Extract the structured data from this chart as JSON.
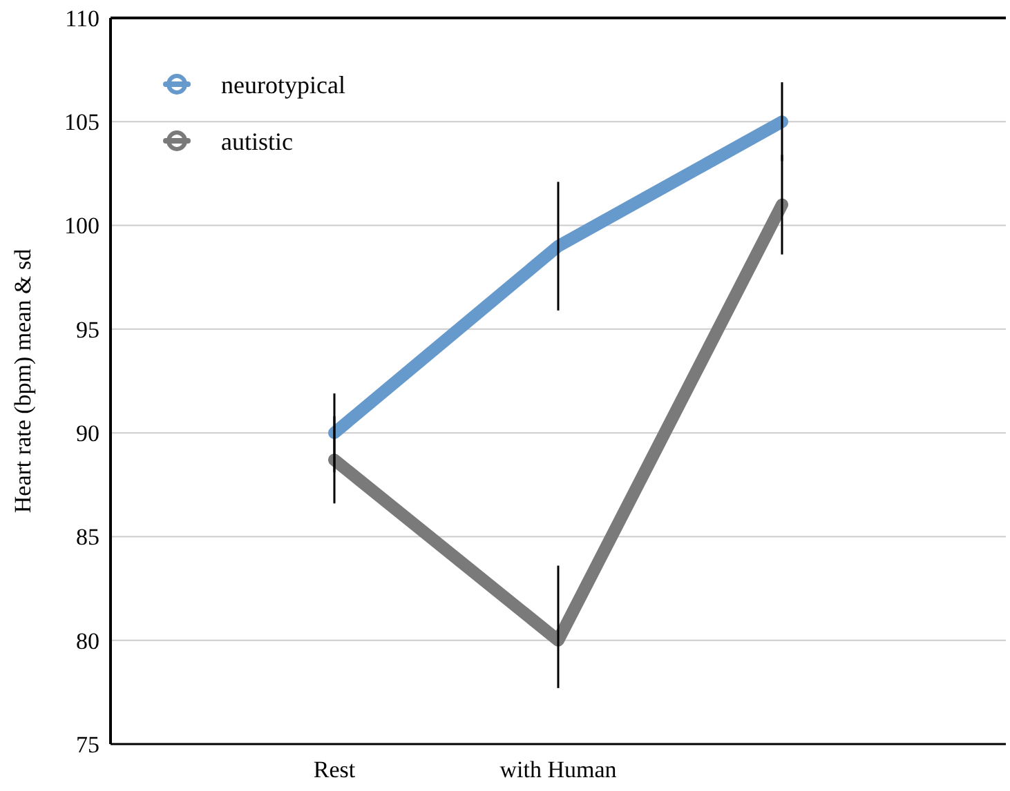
{
  "chart_data": {
    "type": "line",
    "ylabel": "Heart rate (bpm) mean & sd",
    "categories": [
      "Rest",
      "with Human",
      null
    ],
    "series": [
      {
        "name": "neurotypical",
        "color": "#6699cc",
        "values": [
          90,
          99,
          105
        ],
        "errors": [
          [
            88.1,
            91.9
          ],
          [
            95.9,
            102.1
          ],
          [
            103.1,
            106.9
          ]
        ]
      },
      {
        "name": "autistic",
        "color": "#7a7a7a",
        "values": [
          88.7,
          80,
          101
        ],
        "errors": [
          [
            86.6,
            90.8
          ],
          [
            77.7,
            83.6
          ],
          [
            98.6,
            103.4
          ]
        ]
      }
    ],
    "ylim": [
      75,
      110
    ],
    "yticks": [
      75,
      80,
      85,
      90,
      95,
      100,
      105,
      110
    ],
    "grid": "y",
    "legend": "top left"
  }
}
